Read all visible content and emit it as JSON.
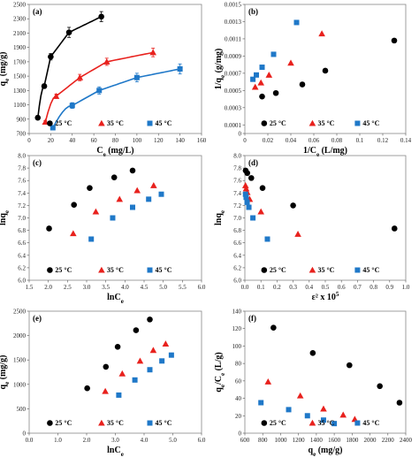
{
  "panels": [
    {
      "label": "(a)",
      "type": "scatter",
      "xlabel": "C",
      "xlabel_sub": "e",
      "xlabel_rest": " (mg/L)",
      "ylabel": "q",
      "ylabel_sub": "e",
      "ylabel_rest": " (mg/g)",
      "xlim": [
        0,
        160
      ],
      "ylim": [
        700,
        2500
      ],
      "xticks": [
        0,
        20,
        40,
        60,
        80,
        100,
        120,
        140,
        160
      ],
      "yticks": [
        700,
        900,
        1100,
        1300,
        1500,
        1700,
        1900,
        2100,
        2300,
        2500
      ],
      "ytick_labels": [
        "700",
        "900",
        "1100",
        "1300",
        "1500",
        "1700",
        "1900",
        "2100",
        "2300",
        "2500"
      ],
      "grid": false,
      "legend_pos": "bottom",
      "fit_curves": true,
      "series": [
        {
          "name": "25 °C",
          "color": "#000000",
          "marker": "circle",
          "x": [
            8,
            14,
            20,
            37,
            67
          ],
          "y": [
            920,
            1360,
            1770,
            2110,
            2330
          ],
          "err": [
            30,
            30,
            45,
            70,
            70
          ]
        },
        {
          "name": "35 °C",
          "color": "#e8211d",
          "marker": "triangle",
          "x": [
            15,
            25,
            47,
            72,
            115
          ],
          "y": [
            860,
            1220,
            1480,
            1700,
            1830
          ],
          "err": [
            20,
            30,
            45,
            50,
            60
          ]
        },
        {
          "name": "45 °C",
          "color": "#1f78c8",
          "marker": "square",
          "x": [
            22,
            40,
            65,
            100,
            140
          ],
          "y": [
            780,
            1090,
            1300,
            1480,
            1600
          ],
          "err": [
            25,
            40,
            50,
            60,
            70
          ]
        }
      ]
    },
    {
      "label": "(b)",
      "type": "scatter",
      "xlabel": "1/C",
      "xlabel_sub": "e",
      "xlabel_rest": " (L/mg)",
      "ylabel": "1/q",
      "ylabel_sub": "e",
      "ylabel_rest": " (g/mg)",
      "xlim": [
        0,
        0.14
      ],
      "ylim": [
        0,
        0.0015
      ],
      "xticks": [
        0,
        0.02,
        0.04,
        0.06,
        0.08,
        0.1,
        0.12,
        0.14
      ],
      "xtick_labels": [
        "0",
        "0.02",
        "0.04",
        "0.06",
        "0.08",
        "0.1",
        "0.12",
        "0.14"
      ],
      "yticks": [
        0,
        0.0001,
        0.0003,
        0.0005,
        0.0007,
        0.0009,
        0.0011,
        0.0013,
        0.0015
      ],
      "ytick_labels": [
        "0",
        "0.0001",
        "0.0003",
        "0.0005",
        "0.0007",
        "0.0009",
        "0.0011",
        "0.0013",
        "0.0015"
      ],
      "grid": false,
      "legend_pos": "bottom",
      "series": [
        {
          "name": "25 °C",
          "color": "#000000",
          "marker": "circle",
          "x": [
            0.015,
            0.027,
            0.05,
            0.07,
            0.13
          ],
          "y": [
            0.00043,
            0.00047,
            0.00057,
            0.00073,
            0.00108
          ]
        },
        {
          "name": "35 °C",
          "color": "#e8211d",
          "marker": "triangle",
          "x": [
            0.009,
            0.014,
            0.021,
            0.04,
            0.067
          ],
          "y": [
            0.00054,
            0.00059,
            0.00068,
            0.00082,
            0.00116
          ]
        },
        {
          "name": "45 °C",
          "color": "#1f78c8",
          "marker": "square",
          "x": [
            0.007,
            0.01,
            0.015,
            0.025,
            0.045
          ],
          "y": [
            0.00063,
            0.00068,
            0.00077,
            0.00092,
            0.00129
          ]
        }
      ]
    },
    {
      "label": "(c)",
      "type": "scatter",
      "xlabel": "lnC",
      "xlabel_sub": "e",
      "xlabel_rest": "",
      "ylabel": "lnq",
      "ylabel_sub": "e",
      "ylabel_rest": "",
      "xlim": [
        1.5,
        6.0
      ],
      "ylim": [
        6.0,
        8.0
      ],
      "xticks": [
        1.5,
        2.0,
        2.5,
        3.0,
        3.5,
        4.0,
        4.5,
        5.0,
        5.5,
        6.0
      ],
      "xtick_labels": [
        "1.5",
        "2.0",
        "2.5",
        "3.0",
        "3.5",
        "4.0",
        "4.5",
        "5.0",
        "5.5",
        "6.0"
      ],
      "yticks": [
        6.0,
        6.2,
        6.4,
        6.6,
        6.8,
        7.0,
        7.2,
        7.4,
        7.6,
        7.8,
        8.0
      ],
      "ytick_labels": [
        "6.0",
        "6.2",
        "6.4",
        "6.6",
        "6.8",
        "7.0",
        "7.2",
        "7.4",
        "7.6",
        "7.8",
        "8.0"
      ],
      "grid": false,
      "legend_pos": "bottom",
      "series": [
        {
          "name": "25 °C",
          "color": "#000000",
          "marker": "circle",
          "x": [
            2.02,
            2.67,
            3.08,
            3.72,
            4.2
          ],
          "y": [
            6.83,
            7.21,
            7.48,
            7.65,
            7.76
          ]
        },
        {
          "name": "35 °C",
          "color": "#e8211d",
          "marker": "triangle",
          "x": [
            2.65,
            3.24,
            3.86,
            4.32,
            4.75
          ],
          "y": [
            6.75,
            7.1,
            7.3,
            7.44,
            7.52
          ]
        },
        {
          "name": "45 °C",
          "color": "#1f78c8",
          "marker": "square",
          "x": [
            3.12,
            3.68,
            4.2,
            4.62,
            4.95
          ],
          "y": [
            6.66,
            7.0,
            7.17,
            7.3,
            7.38
          ]
        }
      ]
    },
    {
      "label": "(d)",
      "type": "scatter",
      "xlabel": "ε² x 10",
      "xlabel_sup": "5",
      "xlabel_rest": "",
      "ylabel": "lnq",
      "ylabel_sub": "e",
      "ylabel_rest": "",
      "xlim": [
        0,
        1.0
      ],
      "ylim": [
        6.0,
        8.0
      ],
      "xticks": [
        0,
        0.1,
        0.2,
        0.3,
        0.4,
        0.5,
        0.6,
        0.7,
        0.8,
        0.9,
        1.0
      ],
      "xtick_labels": [
        "0.0",
        "0.1",
        "0.2",
        "0.3",
        "0.4",
        "0.5",
        "0.6",
        "0.7",
        "0.8",
        "0.9",
        "1.0"
      ],
      "yticks": [
        6.0,
        6.2,
        6.4,
        6.6,
        6.8,
        7.0,
        7.2,
        7.4,
        7.6,
        7.8,
        8.0
      ],
      "ytick_labels": [
        "6.0",
        "6.2",
        "6.4",
        "6.6",
        "6.8",
        "7.0",
        "7.2",
        "7.4",
        "7.6",
        "7.8",
        "8.0"
      ],
      "grid": false,
      "legend_pos": "bottom",
      "series": [
        {
          "name": "25 °C",
          "color": "#000000",
          "marker": "circle",
          "x": [
            0.005,
            0.015,
            0.04,
            0.11,
            0.3,
            0.93
          ],
          "y": [
            7.76,
            7.72,
            7.64,
            7.48,
            7.2,
            6.83
          ]
        },
        {
          "name": "35 °C",
          "color": "#e8211d",
          "marker": "triangle",
          "x": [
            0.004,
            0.008,
            0.015,
            0.03,
            0.1,
            0.33
          ],
          "y": [
            7.52,
            7.47,
            7.41,
            7.3,
            7.1,
            6.74
          ]
        },
        {
          "name": "45 °C",
          "color": "#1f78c8",
          "marker": "square",
          "x": [
            0.004,
            0.008,
            0.014,
            0.025,
            0.05,
            0.14
          ],
          "y": [
            7.38,
            7.33,
            7.25,
            7.17,
            7.0,
            6.66
          ]
        }
      ]
    },
    {
      "label": "(e)",
      "type": "scatter",
      "xlabel": "lnC",
      "xlabel_sub": "e",
      "xlabel_rest": "",
      "ylabel": "q",
      "ylabel_sub": "e",
      "ylabel_rest": " (mg/g)",
      "xlim": [
        0,
        6.0
      ],
      "ylim": [
        0,
        2500
      ],
      "xticks": [
        0,
        1.0,
        2.0,
        3.0,
        4.0,
        5.0,
        6.0
      ],
      "xtick_labels": [
        "0.0",
        "1.0",
        "2.0",
        "3.0",
        "4.0",
        "5.0",
        "6.0"
      ],
      "yticks": [
        0,
        500,
        1000,
        1500,
        2000,
        2500
      ],
      "ytick_labels": [
        "0",
        "500",
        "1000",
        "1500",
        "2000",
        "2500"
      ],
      "grid": false,
      "legend_pos": "bottom",
      "series": [
        {
          "name": "25 °C",
          "color": "#000000",
          "marker": "circle",
          "x": [
            2.02,
            2.67,
            3.08,
            3.72,
            4.2
          ],
          "y": [
            920,
            1360,
            1770,
            2110,
            2330
          ]
        },
        {
          "name": "35 °C",
          "color": "#e8211d",
          "marker": "triangle",
          "x": [
            2.65,
            3.24,
            3.86,
            4.32,
            4.75
          ],
          "y": [
            860,
            1220,
            1480,
            1700,
            1830
          ]
        },
        {
          "name": "45 °C",
          "color": "#1f78c8",
          "marker": "square",
          "x": [
            3.12,
            3.68,
            4.2,
            4.62,
            4.95
          ],
          "y": [
            780,
            1090,
            1300,
            1480,
            1600
          ]
        }
      ]
    },
    {
      "label": "(f)",
      "type": "scatter",
      "xlabel": "q",
      "xlabel_sub": "e",
      "xlabel_rest": " (mg/g)",
      "ylabel": "q",
      "ylabel_sub": "e",
      "ylabel_rest2": "/C",
      "ylabel_sub2": "e",
      "ylabel_rest": " (L/g)",
      "xlim": [
        600,
        2400
      ],
      "ylim": [
        0,
        140
      ],
      "xticks": [
        600,
        800,
        1000,
        1200,
        1400,
        1600,
        1800,
        2000,
        2200,
        2400
      ],
      "xtick_labels": [
        "600",
        "800",
        "1000",
        "1200",
        "1400",
        "1600",
        "1800",
        "2000",
        "2200",
        "2400"
      ],
      "yticks": [
        0,
        20,
        40,
        60,
        80,
        100,
        120,
        140
      ],
      "ytick_labels": [
        "0",
        "20",
        "40",
        "60",
        "80",
        "100",
        "120",
        "140"
      ],
      "grid": false,
      "legend_pos": "bottom",
      "series": [
        {
          "name": "25 °C",
          "color": "#000000",
          "marker": "circle",
          "x": [
            920,
            1360,
            1770,
            2110,
            2330
          ],
          "y": [
            121,
            92,
            78,
            54,
            35
          ]
        },
        {
          "name": "35 °C",
          "color": "#e8211d",
          "marker": "triangle",
          "x": [
            860,
            1220,
            1480,
            1700,
            1830
          ],
          "y": [
            59,
            43,
            28,
            21,
            16
          ]
        },
        {
          "name": "45 °C",
          "color": "#1f78c8",
          "marker": "square",
          "x": [
            780,
            1090,
            1300,
            1480,
            1600
          ],
          "y": [
            35,
            27,
            20,
            15,
            11
          ]
        }
      ]
    }
  ]
}
